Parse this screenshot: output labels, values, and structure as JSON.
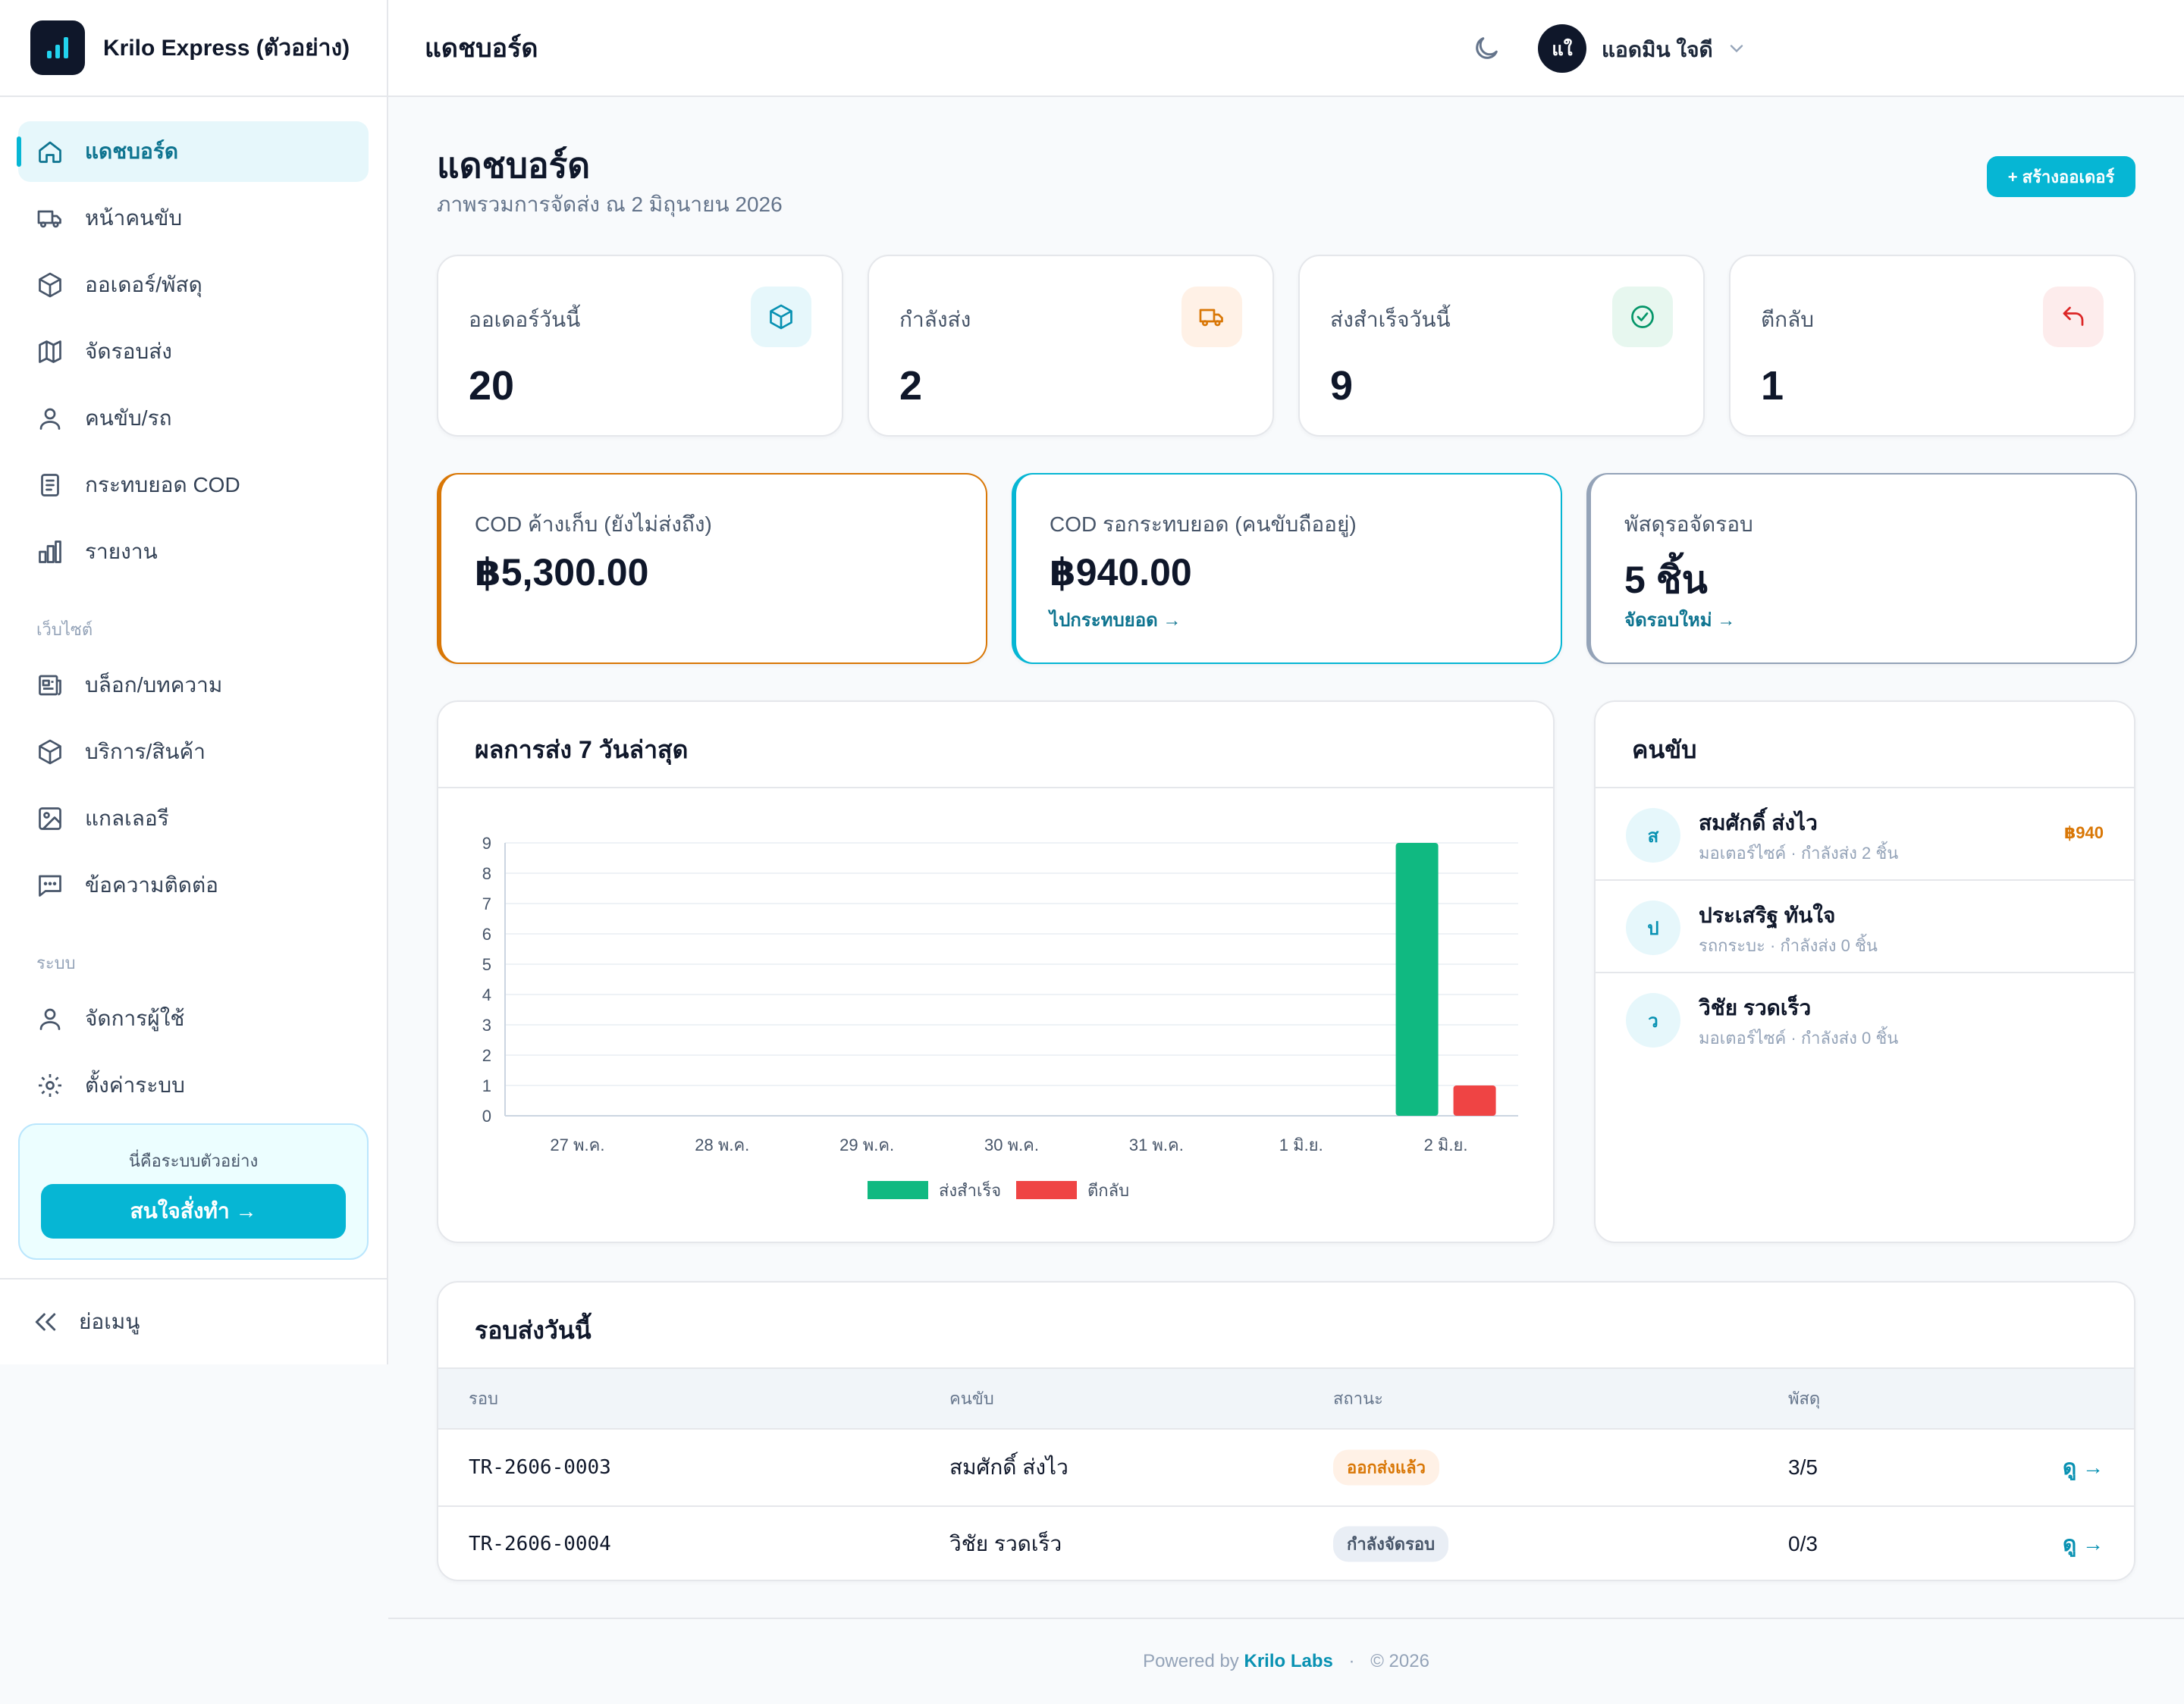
{
  "app": {
    "brand": "Krilo Express (ตัวอย่าง)"
  },
  "sidebar": {
    "items": [
      {
        "label": "แดชบอร์ด",
        "icon": "home-icon"
      },
      {
        "label": "หน้าคนขับ",
        "icon": "truck-icon"
      },
      {
        "label": "ออเดอร์/พัสดุ",
        "icon": "box-icon"
      },
      {
        "label": "จัดรอบส่ง",
        "icon": "map-icon"
      },
      {
        "label": "คนขับ/รถ",
        "icon": "user-icon"
      },
      {
        "label": "กระทบยอด COD",
        "icon": "receipt-icon"
      },
      {
        "label": "รายงาน",
        "icon": "bar-chart-icon"
      }
    ],
    "section_website": "เว็บไซต์",
    "website_items": [
      {
        "label": "บล็อก/บทความ",
        "icon": "newspaper-icon"
      },
      {
        "label": "บริการ/สินค้า",
        "icon": "box-icon"
      },
      {
        "label": "แกลเลอรี",
        "icon": "image-icon"
      },
      {
        "label": "ข้อความติดต่อ",
        "icon": "message-icon"
      }
    ],
    "section_system": "ระบบ",
    "system_items": [
      {
        "label": "จัดการผู้ใช้",
        "icon": "user-icon"
      },
      {
        "label": "ตั้งค่าระบบ",
        "icon": "gear-icon"
      }
    ],
    "demo_text": "นี่คือระบบตัวอย่าง",
    "demo_button": "สนใจสั่งทำ →",
    "collapse": "ย่อเมนู"
  },
  "topbar": {
    "title": "แดชบอร์ด",
    "avatar": "แใ",
    "user": "แอดมิน ใจดี"
  },
  "page": {
    "title": "แดชบอร์ด",
    "subtitle": "ภาพรวมการจัดส่ง ณ 2 มิถุนายน 2026",
    "create_button": "+ สร้างออเดอร์"
  },
  "stats": [
    {
      "label": "ออเดอร์วันนี้",
      "value": "20",
      "icon": "box-icon",
      "bg": "#e6f7fb",
      "fg": "#0891b2"
    },
    {
      "label": "กำลังส่ง",
      "value": "2",
      "icon": "truck-icon",
      "bg": "#fff1e6",
      "fg": "#d97706"
    },
    {
      "label": "ส่งสำเร็จวันนี้",
      "value": "9",
      "icon": "check-circle-icon",
      "bg": "#e7f7ef",
      "fg": "#059669"
    },
    {
      "label": "ตีกลับ",
      "value": "1",
      "icon": "return-icon",
      "bg": "#fdecec",
      "fg": "#dc2626"
    }
  ],
  "cod_cards": [
    {
      "label": "COD ค้างเก็บ (ยังไม่ส่งถึง)",
      "value": "฿5,300.00",
      "link": "",
      "color": "#d97706"
    },
    {
      "label": "COD รอกระทบยอด (คนขับถืออยู่)",
      "value": "฿940.00",
      "link": "ไปกระทบยอด →",
      "color": "#06b6d4"
    },
    {
      "label": "พัสดุรอจัดรอบ",
      "value": "5 ชิ้น",
      "link": "จัดรอบใหม่ →",
      "color": "#94a3b8"
    }
  ],
  "chart": {
    "title": "ผลการส่ง 7 วันล่าสุด"
  },
  "chart_data": {
    "type": "bar",
    "categories": [
      "27 พ.ค.",
      "28 พ.ค.",
      "29 พ.ค.",
      "30 พ.ค.",
      "31 พ.ค.",
      "1 มิ.ย.",
      "2 มิ.ย."
    ],
    "series": [
      {
        "name": "ส่งสำเร็จ",
        "values": [
          0,
          0,
          0,
          0,
          0,
          0,
          9
        ],
        "color": "#10b981"
      },
      {
        "name": "ตีกลับ",
        "values": [
          0,
          0,
          0,
          0,
          0,
          0,
          1
        ],
        "color": "#ef4444"
      }
    ],
    "yticks": [
      "0",
      "1",
      "2",
      "3",
      "4",
      "5",
      "6",
      "7",
      "8",
      "9"
    ],
    "ylim": [
      0,
      9
    ],
    "grid": true,
    "legend": "bottom"
  },
  "drivers": {
    "title": "คนขับ",
    "list": [
      {
        "initial": "ส",
        "name": "สมศักดิ์ ส่งไว",
        "meta": "มอเตอร์ไซค์ · กำลังส่ง 2 ชิ้น",
        "cod": "฿940"
      },
      {
        "initial": "ป",
        "name": "ประเสริฐ ทันใจ",
        "meta": "รถกระบะ · กำลังส่ง 0 ชิ้น",
        "cod": ""
      },
      {
        "initial": "ว",
        "name": "วิชัย รวดเร็ว",
        "meta": "มอเตอร์ไซค์ · กำลังส่ง 0 ชิ้น",
        "cod": ""
      }
    ]
  },
  "rounds": {
    "title": "รอบส่งวันนี้",
    "headers": [
      "รอบ",
      "คนขับ",
      "สถานะ",
      "พัสดุ"
    ],
    "rows": [
      {
        "id": "TR-2606-0003",
        "driver": "สมศักดิ์ ส่งไว",
        "status": "ออกส่งแล้ว",
        "status_bg": "#fff1e6",
        "status_fg": "#d97706",
        "parcels": "3/5",
        "action": "ดู →"
      },
      {
        "id": "TR-2606-0004",
        "driver": "วิชัย รวดเร็ว",
        "status": "กำลังจัดรอบ",
        "status_bg": "#e9eef5",
        "status_fg": "#475569",
        "parcels": "0/3",
        "action": "ดู →"
      }
    ]
  },
  "footer": {
    "powered": "Powered by",
    "brand": "Krilo Labs",
    "sep": "·",
    "year": "© 2026"
  }
}
